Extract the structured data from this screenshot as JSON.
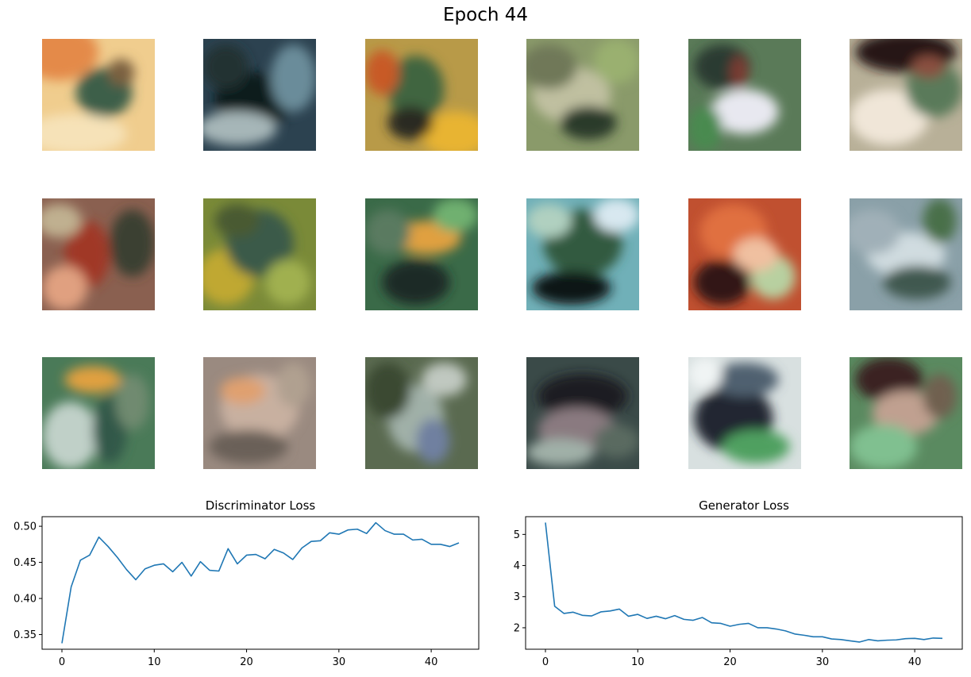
{
  "figure": {
    "title": "Epoch 44"
  },
  "samples": [
    {
      "name": "sample-1",
      "bg": "#f0cd8e",
      "blobs": [
        [
          "#e48a4a",
          0.15,
          0.12,
          0.35,
          0.25
        ],
        [
          "#3e5f48",
          0.55,
          0.48,
          0.25,
          0.22
        ],
        [
          "#f6e2b8",
          0.3,
          0.85,
          0.45,
          0.18
        ],
        [
          "#7a6040",
          0.7,
          0.3,
          0.12,
          0.12
        ]
      ]
    },
    {
      "name": "sample-2",
      "bg": "#2c4250",
      "blobs": [
        [
          "#0f1a1f",
          0.45,
          0.55,
          0.35,
          0.25
        ],
        [
          "#a6b6b8",
          0.3,
          0.8,
          0.35,
          0.15
        ],
        [
          "#6a8c9a",
          0.8,
          0.35,
          0.2,
          0.3
        ],
        [
          "#203030",
          0.2,
          0.25,
          0.2,
          0.2
        ]
      ]
    },
    {
      "name": "sample-3",
      "bg": "#b89a48",
      "blobs": [
        [
          "#e8b430",
          0.8,
          0.85,
          0.3,
          0.2
        ],
        [
          "#3f6540",
          0.45,
          0.45,
          0.25,
          0.3
        ],
        [
          "#c85a28",
          0.15,
          0.3,
          0.15,
          0.2
        ],
        [
          "#2a2a20",
          0.4,
          0.75,
          0.2,
          0.15
        ]
      ]
    },
    {
      "name": "sample-4",
      "bg": "#8a9a6a",
      "blobs": [
        [
          "#c0c0a0",
          0.4,
          0.5,
          0.35,
          0.25
        ],
        [
          "#2c3a2c",
          0.55,
          0.75,
          0.25,
          0.15
        ],
        [
          "#9ab070",
          0.8,
          0.2,
          0.2,
          0.2
        ],
        [
          "#707858",
          0.2,
          0.25,
          0.25,
          0.2
        ]
      ]
    },
    {
      "name": "sample-5",
      "bg": "#5a7a58",
      "blobs": [
        [
          "#e8e8f0",
          0.5,
          0.65,
          0.3,
          0.2
        ],
        [
          "#2a3a30",
          0.3,
          0.25,
          0.25,
          0.2
        ],
        [
          "#7a3a30",
          0.45,
          0.3,
          0.08,
          0.15
        ],
        [
          "#4a8a50",
          0.15,
          0.8,
          0.15,
          0.2
        ]
      ]
    },
    {
      "name": "sample-6",
      "bg": "#b8b098",
      "blobs": [
        [
          "#281818",
          0.5,
          0.12,
          0.45,
          0.18
        ],
        [
          "#f0e6d8",
          0.35,
          0.7,
          0.35,
          0.25
        ],
        [
          "#5a7a5a",
          0.75,
          0.45,
          0.25,
          0.25
        ],
        [
          "#8a5040",
          0.7,
          0.25,
          0.15,
          0.1
        ]
      ]
    },
    {
      "name": "sample-7",
      "bg": "#8a6050",
      "blobs": [
        [
          "#a03828",
          0.4,
          0.5,
          0.2,
          0.3
        ],
        [
          "#3a4030",
          0.8,
          0.4,
          0.2,
          0.3
        ],
        [
          "#e0a080",
          0.2,
          0.8,
          0.2,
          0.2
        ],
        [
          "#c0b090",
          0.15,
          0.2,
          0.2,
          0.15
        ]
      ]
    },
    {
      "name": "sample-8",
      "bg": "#7a8a38",
      "blobs": [
        [
          "#c0a830",
          0.2,
          0.7,
          0.25,
          0.25
        ],
        [
          "#3a5a4a",
          0.5,
          0.4,
          0.3,
          0.3
        ],
        [
          "#a0b050",
          0.75,
          0.75,
          0.2,
          0.2
        ],
        [
          "#4a5a30",
          0.3,
          0.2,
          0.2,
          0.15
        ]
      ]
    },
    {
      "name": "sample-9",
      "bg": "#3a6a48",
      "blobs": [
        [
          "#e0a040",
          0.55,
          0.35,
          0.3,
          0.15
        ],
        [
          "#1a2a28",
          0.45,
          0.75,
          0.3,
          0.2
        ],
        [
          "#70b070",
          0.8,
          0.15,
          0.2,
          0.15
        ],
        [
          "#5a7a60",
          0.2,
          0.3,
          0.2,
          0.2
        ]
      ]
    },
    {
      "name": "sample-10",
      "bg": "#70b0b8",
      "blobs": [
        [
          "#305a40",
          0.5,
          0.4,
          0.35,
          0.3
        ],
        [
          "#101818",
          0.4,
          0.8,
          0.35,
          0.15
        ],
        [
          "#d8e8f0",
          0.8,
          0.15,
          0.2,
          0.15
        ],
        [
          "#b0d0c0",
          0.2,
          0.2,
          0.2,
          0.15
        ]
      ]
    },
    {
      "name": "sample-11",
      "bg": "#c05030",
      "blobs": [
        [
          "#e07040",
          0.4,
          0.3,
          0.3,
          0.25
        ],
        [
          "#b8d0a0",
          0.75,
          0.7,
          0.2,
          0.2
        ],
        [
          "#301818",
          0.3,
          0.75,
          0.25,
          0.2
        ],
        [
          "#f0c0a0",
          0.6,
          0.5,
          0.2,
          0.15
        ]
      ]
    },
    {
      "name": "sample-12",
      "bg": "#8aa0a8",
      "blobs": [
        [
          "#d0dce0",
          0.5,
          0.5,
          0.35,
          0.2
        ],
        [
          "#405850",
          0.6,
          0.75,
          0.3,
          0.15
        ],
        [
          "#4a7048",
          0.8,
          0.2,
          0.15,
          0.2
        ],
        [
          "#a0b0b8",
          0.2,
          0.3,
          0.25,
          0.2
        ]
      ]
    },
    {
      "name": "sample-13",
      "bg": "#4a7a58",
      "blobs": [
        [
          "#c0d0c8",
          0.25,
          0.7,
          0.25,
          0.3
        ],
        [
          "#e0a040",
          0.45,
          0.2,
          0.25,
          0.12
        ],
        [
          "#30584a",
          0.6,
          0.65,
          0.15,
          0.3
        ],
        [
          "#708a70",
          0.8,
          0.4,
          0.15,
          0.25
        ]
      ]
    },
    {
      "name": "sample-14",
      "bg": "#9a8a80",
      "blobs": [
        [
          "#c8b0a0",
          0.5,
          0.45,
          0.35,
          0.3
        ],
        [
          "#e0a070",
          0.35,
          0.3,
          0.2,
          0.12
        ],
        [
          "#6a6058",
          0.4,
          0.8,
          0.35,
          0.15
        ],
        [
          "#b0a090",
          0.8,
          0.25,
          0.15,
          0.2
        ]
      ]
    },
    {
      "name": "sample-15",
      "bg": "#5a6a50",
      "blobs": [
        [
          "#a0b0a8",
          0.45,
          0.55,
          0.25,
          0.3
        ],
        [
          "#3a4a30",
          0.2,
          0.3,
          0.2,
          0.25
        ],
        [
          "#7080a0",
          0.6,
          0.75,
          0.15,
          0.2
        ],
        [
          "#c0c8c0",
          0.7,
          0.2,
          0.2,
          0.15
        ]
      ]
    },
    {
      "name": "sample-16",
      "bg": "#3a4a48",
      "blobs": [
        [
          "#1a1e20",
          0.5,
          0.35,
          0.4,
          0.2
        ],
        [
          "#8a7a80",
          0.45,
          0.65,
          0.35,
          0.2
        ],
        [
          "#a0b0a8",
          0.3,
          0.85,
          0.3,
          0.12
        ],
        [
          "#5a6a60",
          0.8,
          0.75,
          0.2,
          0.15
        ]
      ]
    },
    {
      "name": "sample-17",
      "bg": "#d8e0e0",
      "blobs": [
        [
          "#202830",
          0.4,
          0.55,
          0.35,
          0.3
        ],
        [
          "#50a060",
          0.6,
          0.8,
          0.3,
          0.15
        ],
        [
          "#506070",
          0.5,
          0.2,
          0.3,
          0.15
        ],
        [
          "#f0f4f4",
          0.15,
          0.15,
          0.15,
          0.15
        ]
      ]
    },
    {
      "name": "sample-18",
      "bg": "#5a8a60",
      "blobs": [
        [
          "#3a2020",
          0.35,
          0.2,
          0.3,
          0.2
        ],
        [
          "#c0a090",
          0.5,
          0.5,
          0.3,
          0.2
        ],
        [
          "#80c090",
          0.3,
          0.8,
          0.3,
          0.2
        ],
        [
          "#706050",
          0.8,
          0.35,
          0.15,
          0.2
        ]
      ]
    }
  ],
  "chart_data": [
    {
      "type": "line",
      "title": "Discriminator Loss",
      "xlabel": "",
      "ylabel": "",
      "x": [
        0,
        1,
        2,
        3,
        4,
        5,
        6,
        7,
        8,
        9,
        10,
        11,
        12,
        13,
        14,
        15,
        16,
        17,
        18,
        19,
        20,
        21,
        22,
        23,
        24,
        25,
        26,
        27,
        28,
        29,
        30,
        31,
        32,
        33,
        34,
        35,
        36,
        37,
        38,
        39,
        40,
        41,
        42,
        43
      ],
      "values": [
        0.338,
        0.416,
        0.453,
        0.46,
        0.485,
        0.472,
        0.457,
        0.44,
        0.426,
        0.441,
        0.446,
        0.448,
        0.437,
        0.45,
        0.431,
        0.451,
        0.439,
        0.438,
        0.469,
        0.448,
        0.46,
        0.461,
        0.455,
        0.468,
        0.463,
        0.454,
        0.47,
        0.479,
        0.48,
        0.491,
        0.489,
        0.495,
        0.496,
        0.49,
        0.505,
        0.494,
        0.489,
        0.489,
        0.481,
        0.482,
        0.475,
        0.475,
        0.472,
        0.477
      ],
      "xlim": [
        -2.15,
        45.15
      ],
      "ylim": [
        0.3297,
        0.5133
      ],
      "xticks": [
        0,
        10,
        20,
        30,
        40
      ],
      "xtick_labels": [
        "0",
        "10",
        "20",
        "30",
        "40"
      ],
      "yticks": [
        0.35,
        0.4,
        0.45,
        0.5
      ],
      "ytick_labels": [
        "0.35",
        "0.40",
        "0.45",
        "0.50"
      ],
      "line_color": "#1f77b4",
      "grid": false,
      "legend": "none"
    },
    {
      "type": "line",
      "title": "Generator Loss",
      "xlabel": "",
      "ylabel": "",
      "x": [
        0,
        1,
        2,
        3,
        4,
        5,
        6,
        7,
        8,
        9,
        10,
        11,
        12,
        13,
        14,
        15,
        16,
        17,
        18,
        19,
        20,
        21,
        22,
        23,
        24,
        25,
        26,
        27,
        28,
        29,
        30,
        31,
        32,
        33,
        34,
        35,
        36,
        37,
        38,
        39,
        40,
        41,
        42,
        43
      ],
      "values": [
        5.38,
        2.69,
        2.46,
        2.5,
        2.4,
        2.38,
        2.51,
        2.54,
        2.6,
        2.37,
        2.43,
        2.3,
        2.37,
        2.29,
        2.39,
        2.27,
        2.24,
        2.33,
        2.16,
        2.14,
        2.05,
        2.11,
        2.14,
        2.0,
        2.0,
        1.96,
        1.9,
        1.8,
        1.76,
        1.71,
        1.71,
        1.64,
        1.62,
        1.58,
        1.54,
        1.62,
        1.58,
        1.6,
        1.61,
        1.65,
        1.66,
        1.62,
        1.67,
        1.66
      ],
      "xlim": [
        -2.15,
        45.15
      ],
      "ylim": [
        1.31,
        5.57
      ],
      "xticks": [
        0,
        10,
        20,
        30,
        40
      ],
      "xtick_labels": [
        "0",
        "10",
        "20",
        "30",
        "40"
      ],
      "yticks": [
        2,
        3,
        4,
        5
      ],
      "ytick_labels": [
        "2",
        "3",
        "4",
        "5"
      ],
      "line_color": "#1f77b4",
      "grid": false,
      "legend": "none"
    }
  ]
}
